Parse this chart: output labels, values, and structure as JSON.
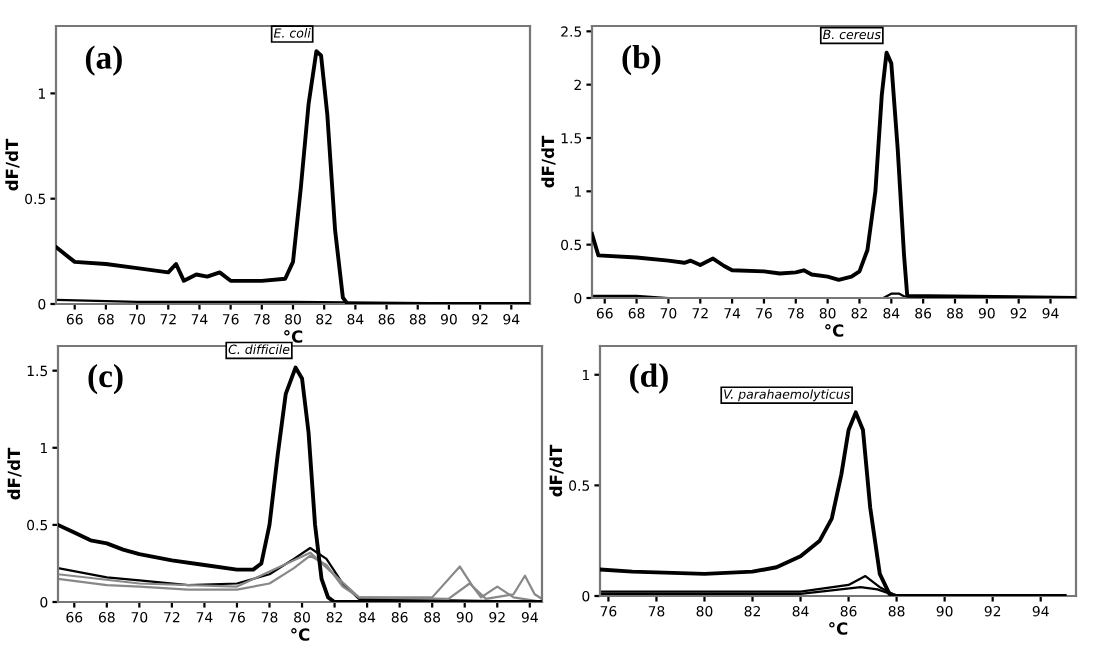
{
  "chart_data": [
    {
      "type": "line",
      "xlabel": "°C",
      "ylabel": "dF/dT",
      "xlim": [
        64.8,
        95.2
      ],
      "ylim": [
        0,
        1.32
      ],
      "xticks": [
        66,
        68,
        70,
        72,
        74,
        76,
        78,
        80,
        82,
        84,
        86,
        88,
        90,
        92,
        94
      ],
      "yticks": [
        0,
        0.5,
        1
      ],
      "grid": false,
      "marker": "none",
      "line_style": "solid",
      "annotations": [
        "(a)",
        {
          "text": "E. coli",
          "x": 81.5,
          "y": 1.2
        }
      ],
      "series": [
        {
          "color": "#000000",
          "x": [
            64.8,
            66,
            68,
            70,
            72,
            72.5,
            73,
            73.8,
            74.5,
            75.3,
            76,
            78,
            79.5,
            80,
            80.5,
            81,
            81.5,
            81.8,
            82.2,
            82.7,
            83.2,
            83.5,
            95.2
          ],
          "values": [
            0.27,
            0.2,
            0.19,
            0.17,
            0.15,
            0.19,
            0.11,
            0.14,
            0.13,
            0.15,
            0.11,
            0.11,
            0.12,
            0.2,
            0.55,
            0.95,
            1.2,
            1.18,
            0.9,
            0.35,
            0.03,
            0,
            0
          ]
        },
        {
          "color": "#000000",
          "x": [
            64.8,
            70,
            80,
            95.2
          ],
          "values": [
            0.02,
            0.01,
            0.01,
            0
          ]
        }
      ]
    },
    {
      "type": "line",
      "xlabel": "°C",
      "ylabel": "dF/dT",
      "xlim": [
        65.2,
        95.6
      ],
      "ylim": [
        0,
        2.55
      ],
      "xticks": [
        66,
        68,
        70,
        72,
        74,
        76,
        78,
        80,
        82,
        84,
        86,
        88,
        90,
        92,
        94
      ],
      "yticks": [
        0,
        0.5,
        1,
        1.5,
        2,
        2.5
      ],
      "grid": false,
      "marker": "none",
      "line_style": "solid",
      "annotations": [
        "(b)",
        {
          "text": "B. cereus",
          "x": 83.7,
          "y": 2.3
        }
      ],
      "series": [
        {
          "color": "#000000",
          "x": [
            65.2,
            65.6,
            68,
            70,
            71,
            71.4,
            72,
            72.8,
            73.5,
            74,
            76,
            77,
            78,
            78.5,
            79,
            80,
            80.7,
            81.5,
            82,
            82.5,
            83,
            83.4,
            83.7,
            84,
            84.4,
            84.8,
            85,
            95.6
          ],
          "values": [
            0.6,
            0.4,
            0.38,
            0.35,
            0.33,
            0.35,
            0.31,
            0.37,
            0.3,
            0.26,
            0.25,
            0.23,
            0.24,
            0.26,
            0.22,
            0.2,
            0.17,
            0.2,
            0.25,
            0.45,
            1.0,
            1.9,
            2.3,
            2.2,
            1.4,
            0.4,
            0.02,
            0
          ]
        },
        {
          "color": "#000000",
          "x": [
            65.2,
            68,
            70,
            83.5,
            84,
            84.5,
            85,
            95.6
          ],
          "values": [
            0.02,
            0.02,
            0,
            0,
            0.04,
            0.04,
            0,
            0
          ]
        }
      ]
    },
    {
      "type": "line",
      "xlabel": "°C",
      "ylabel": "dF/dT",
      "xlim": [
        65,
        94.75
      ],
      "ylim": [
        0,
        1.66
      ],
      "xticks": [
        66,
        68,
        70,
        72,
        74,
        76,
        78,
        80,
        82,
        84,
        86,
        88,
        90,
        92,
        94
      ],
      "yticks": [
        0,
        0.5,
        1,
        1.5
      ],
      "grid": false,
      "marker": "none",
      "line_style": "solid",
      "annotations": [
        "(c)",
        {
          "text": "C. difficile",
          "x": 79.6,
          "y": 1.52
        }
      ],
      "series": [
        {
          "color": "#000000",
          "x": [
            65,
            66,
            67,
            68,
            69,
            70,
            72,
            74,
            76,
            77,
            77.5,
            78,
            78.5,
            79,
            79.6,
            80,
            80.4,
            80.8,
            81.2,
            81.6,
            82,
            94.75
          ],
          "values": [
            0.5,
            0.45,
            0.4,
            0.38,
            0.34,
            0.31,
            0.27,
            0.24,
            0.21,
            0.21,
            0.25,
            0.5,
            0.95,
            1.35,
            1.52,
            1.45,
            1.1,
            0.5,
            0.15,
            0.03,
            0,
            0
          ]
        },
        {
          "color": "#000000",
          "x": [
            65,
            68,
            70,
            73,
            76,
            78,
            79.5,
            80.5,
            81.5,
            82.5,
            83.5,
            94.75
          ],
          "values": [
            0.22,
            0.16,
            0.14,
            0.11,
            0.12,
            0.18,
            0.28,
            0.35,
            0.28,
            0.12,
            0.02,
            0
          ]
        },
        {
          "color": "#888888",
          "x": [
            65,
            68,
            70,
            73,
            76,
            78,
            79.5,
            80.5,
            81.5,
            82.5,
            83.5,
            88,
            89.7,
            90.5,
            91,
            92,
            93,
            94.75
          ],
          "values": [
            0.15,
            0.11,
            0.1,
            0.08,
            0.08,
            0.12,
            0.22,
            0.3,
            0.24,
            0.1,
            0.03,
            0.03,
            0.23,
            0.1,
            0.03,
            0.1,
            0.03,
            0
          ]
        },
        {
          "color": "#888888",
          "x": [
            65,
            70,
            76,
            80.5,
            83.5,
            89,
            90.3,
            91.3,
            93,
            93.7,
            94.3,
            94.75
          ],
          "values": [
            0.18,
            0.12,
            0.1,
            0.32,
            0.03,
            0.02,
            0.12,
            0.02,
            0.05,
            0.17,
            0.05,
            0.02
          ]
        }
      ]
    },
    {
      "type": "line",
      "xlabel": "°C",
      "ylabel": "dF/dT",
      "xlim": [
        75.65,
        95.47
      ],
      "ylim": [
        0,
        1.13
      ],
      "xticks": [
        76,
        78,
        80,
        82,
        84,
        86,
        88,
        90,
        92,
        94
      ],
      "yticks": [
        0,
        0.5,
        1
      ],
      "grid": false,
      "marker": "none",
      "line_style": "solid",
      "annotations": [
        "(d)",
        {
          "text": "V. parahaemolyticus",
          "x": 86.3,
          "y": 0.83
        }
      ],
      "series": [
        {
          "color": "#000000",
          "x": [
            75.65,
            77,
            80,
            82,
            83,
            84,
            84.8,
            85.3,
            85.7,
            86,
            86.3,
            86.6,
            86.9,
            87.3,
            87.7,
            88,
            95
          ],
          "values": [
            0.12,
            0.11,
            0.1,
            0.11,
            0.13,
            0.18,
            0.25,
            0.35,
            0.55,
            0.75,
            0.83,
            0.75,
            0.4,
            0.1,
            0.01,
            0,
            0
          ]
        },
        {
          "color": "#000000",
          "x": [
            75.65,
            84,
            86,
            86.7,
            87.3,
            88,
            95
          ],
          "values": [
            0.02,
            0.02,
            0.05,
            0.09,
            0.04,
            0,
            0
          ]
        },
        {
          "color": "#000000",
          "x": [
            75.65,
            84,
            86.5,
            87.2,
            88,
            95
          ],
          "values": [
            0.01,
            0.01,
            0.04,
            0.03,
            0,
            0
          ]
        }
      ]
    }
  ]
}
